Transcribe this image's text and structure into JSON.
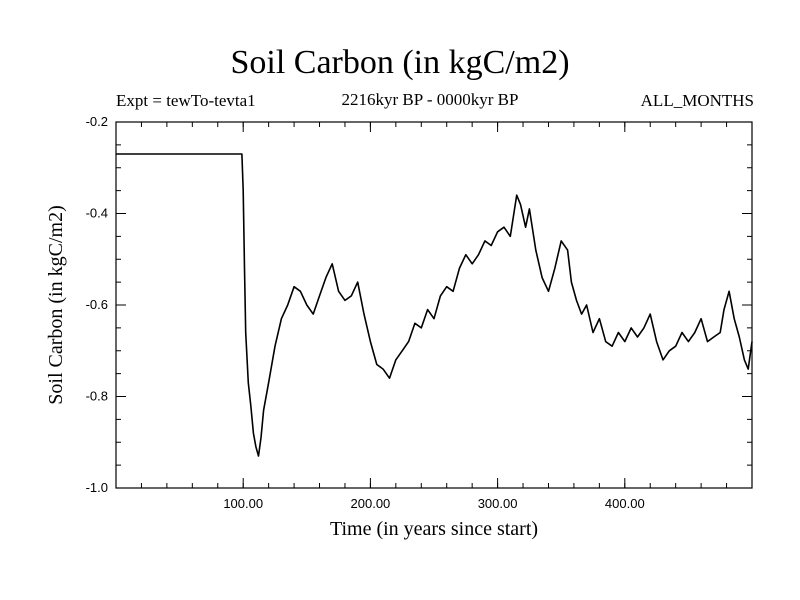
{
  "chart_data": {
    "type": "line",
    "title": "Soil Carbon (in kgC/m2)",
    "subtitle_left": "Expt = tewTo-tevta1",
    "subtitle_center": "2216kyr BP - 0000kyr BP",
    "subtitle_right": "ALL_MONTHS",
    "xlabel": "Time (in years since start)",
    "ylabel": "Soil Carbon (in kgC/m2)",
    "xlim": [
      0,
      500
    ],
    "ylim": [
      -1.0,
      -0.2
    ],
    "xticks": [
      100,
      200,
      300,
      400
    ],
    "xtick_labels": [
      "100.00",
      "200.00",
      "300.00",
      "400.00"
    ],
    "yticks": [
      -1.0,
      -0.8,
      -0.6,
      -0.4,
      -0.2
    ],
    "ytick_labels": [
      "-1.0",
      "-0.8",
      "-0.6",
      "-0.4",
      "-0.2"
    ],
    "grid": false,
    "series": [
      {
        "name": "Soil Carbon",
        "color": "#000000",
        "x": [
          0,
          99,
          100,
          101,
          102,
          104,
          106,
          108,
          110,
          112,
          114,
          116,
          120,
          125,
          130,
          135,
          140,
          145,
          150,
          155,
          160,
          165,
          170,
          175,
          180,
          185,
          190,
          195,
          200,
          205,
          210,
          215,
          220,
          225,
          230,
          235,
          240,
          245,
          250,
          255,
          260,
          265,
          270,
          275,
          280,
          285,
          290,
          295,
          300,
          305,
          310,
          315,
          318,
          322,
          325,
          330,
          335,
          340,
          345,
          350,
          355,
          358,
          362,
          366,
          370,
          375,
          380,
          385,
          390,
          395,
          400,
          405,
          410,
          415,
          420,
          425,
          430,
          435,
          440,
          445,
          450,
          455,
          460,
          465,
          470,
          475,
          478,
          482,
          486,
          490,
          494,
          497,
          500
        ],
        "y": [
          -0.27,
          -0.27,
          -0.35,
          -0.52,
          -0.66,
          -0.77,
          -0.82,
          -0.88,
          -0.91,
          -0.93,
          -0.89,
          -0.83,
          -0.77,
          -0.69,
          -0.63,
          -0.6,
          -0.56,
          -0.57,
          -0.6,
          -0.62,
          -0.58,
          -0.54,
          -0.51,
          -0.57,
          -0.59,
          -0.58,
          -0.55,
          -0.62,
          -0.68,
          -0.73,
          -0.74,
          -0.76,
          -0.72,
          -0.7,
          -0.68,
          -0.64,
          -0.65,
          -0.61,
          -0.63,
          -0.58,
          -0.56,
          -0.57,
          -0.52,
          -0.49,
          -0.51,
          -0.49,
          -0.46,
          -0.47,
          -0.44,
          -0.43,
          -0.45,
          -0.36,
          -0.38,
          -0.43,
          -0.39,
          -0.48,
          -0.54,
          -0.57,
          -0.52,
          -0.46,
          -0.48,
          -0.55,
          -0.59,
          -0.62,
          -0.6,
          -0.66,
          -0.63,
          -0.68,
          -0.69,
          -0.66,
          -0.68,
          -0.65,
          -0.67,
          -0.65,
          -0.62,
          -0.68,
          -0.72,
          -0.7,
          -0.69,
          -0.66,
          -0.68,
          -0.66,
          -0.63,
          -0.68,
          -0.67,
          -0.66,
          -0.61,
          -0.57,
          -0.63,
          -0.67,
          -0.72,
          -0.74,
          -0.68
        ]
      }
    ]
  }
}
